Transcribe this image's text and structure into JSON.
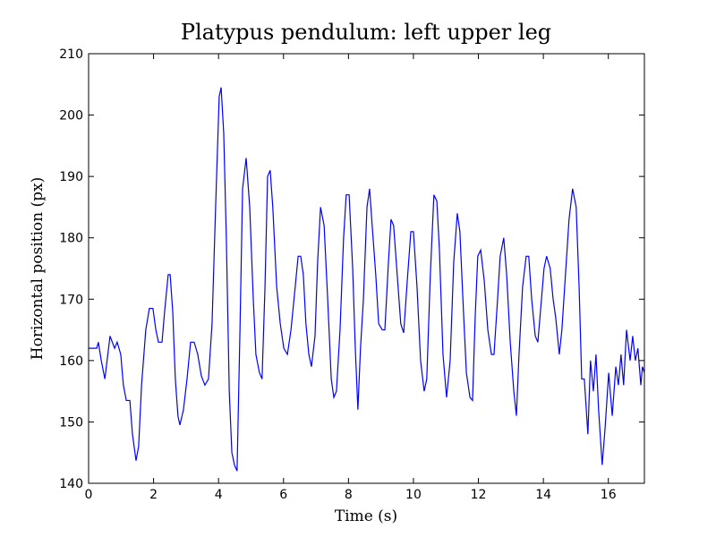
{
  "chart_data": {
    "type": "line",
    "title": "Platypus pendulum: left upper leg",
    "xlabel": "Time (s)",
    "ylabel": "Horizontal position (px)",
    "color": "#0000ff",
    "x": [
      0,
      0.25,
      0.3,
      0.39,
      0.5,
      0.66,
      0.8,
      0.88,
      0.99,
      1.07,
      1.16,
      1.27,
      1.35,
      1.46,
      1.54,
      1.63,
      1.76,
      1.87,
      1.98,
      2.07,
      2.15,
      2.26,
      2.34,
      2.45,
      2.51,
      2.59,
      2.67,
      2.75,
      2.81,
      2.92,
      3.03,
      3.14,
      3.25,
      3.36,
      3.47,
      3.58,
      3.69,
      3.8,
      3.91,
      4.02,
      4.08,
      4.16,
      4.24,
      4.33,
      4.41,
      4.49,
      4.57,
      4.66,
      4.74,
      4.85,
      4.96,
      5.07,
      5.15,
      5.26,
      5.34,
      5.43,
      5.51,
      5.59,
      5.67,
      5.79,
      5.9,
      6.01,
      6.12,
      6.23,
      6.36,
      6.45,
      6.53,
      6.61,
      6.69,
      6.78,
      6.86,
      6.97,
      7.05,
      7.14,
      7.25,
      7.36,
      7.47,
      7.55,
      7.63,
      7.74,
      7.85,
      7.93,
      8.02,
      8.13,
      8.21,
      8.29,
      8.37,
      8.46,
      8.57,
      8.65,
      8.73,
      8.84,
      8.93,
      9.04,
      9.12,
      9.23,
      9.31,
      9.39,
      9.5,
      9.61,
      9.7,
      9.81,
      9.92,
      10.0,
      10.11,
      10.22,
      10.33,
      10.41,
      10.52,
      10.63,
      10.72,
      10.8,
      10.91,
      11.02,
      11.13,
      11.24,
      11.35,
      11.43,
      11.54,
      11.63,
      11.74,
      11.82,
      11.9,
      11.98,
      12.07,
      12.18,
      12.29,
      12.4,
      12.48,
      12.59,
      12.67,
      12.78,
      12.87,
      12.98,
      13.09,
      13.17,
      13.25,
      13.36,
      13.47,
      13.55,
      13.64,
      13.75,
      13.83,
      13.91,
      14.02,
      14.1,
      14.21,
      14.3,
      14.38,
      14.49,
      14.57,
      14.68,
      14.79,
      14.9,
      15.01,
      15.1,
      15.18,
      15.26,
      15.37,
      15.45,
      15.54,
      15.62,
      15.7,
      15.81,
      15.9,
      16.01,
      16.12,
      16.23,
      16.31,
      16.39,
      16.47,
      16.56,
      16.67,
      16.75,
      16.83,
      16.91,
      17.0,
      17.05,
      17.11
    ],
    "values": [
      162,
      162,
      163,
      160,
      157,
      164,
      162,
      163,
      161,
      156,
      153.5,
      153.5,
      148,
      143.7,
      146,
      156,
      165,
      168.5,
      168.5,
      165,
      163,
      163,
      168,
      174,
      174,
      168,
      157,
      151,
      149.5,
      152,
      157,
      163,
      163,
      161,
      157.5,
      156,
      157,
      166,
      185,
      203,
      204.5,
      197,
      180,
      155,
      145,
      143,
      142,
      165,
      188,
      193,
      185,
      170,
      161,
      158,
      157,
      172,
      190,
      191,
      185,
      172,
      166,
      162,
      161,
      165,
      172,
      177,
      177,
      174,
      166,
      161,
      159,
      164,
      176,
      185,
      182,
      170,
      157,
      154,
      155,
      165,
      180,
      187,
      187,
      175,
      162,
      152,
      162,
      170,
      185,
      188,
      182,
      174,
      166,
      165,
      165,
      176,
      183,
      182,
      174,
      166,
      164.5,
      173,
      181,
      181,
      172,
      160,
      155,
      157,
      174,
      187,
      186,
      178,
      161,
      154,
      160,
      176,
      184,
      181,
      168,
      158,
      154,
      153.5,
      167,
      177,
      178,
      173,
      165,
      161,
      161,
      170,
      177,
      180,
      174,
      163,
      155,
      151,
      161,
      172,
      177,
      177,
      170,
      164,
      163,
      168,
      175,
      177,
      175,
      170,
      167,
      161,
      165,
      174,
      183,
      188,
      185,
      172,
      157,
      157,
      148,
      160,
      155,
      161,
      152,
      143,
      149,
      158,
      151,
      159,
      156,
      161,
      156,
      165,
      160,
      164,
      160,
      162,
      156,
      159,
      158
    ],
    "xlim": [
      0,
      17.11
    ],
    "ylim": [
      140,
      210
    ],
    "xticks": [
      0,
      2,
      4,
      6,
      8,
      10,
      12,
      14,
      16
    ],
    "yticks": [
      140,
      150,
      160,
      170,
      180,
      190,
      200,
      210
    ]
  }
}
